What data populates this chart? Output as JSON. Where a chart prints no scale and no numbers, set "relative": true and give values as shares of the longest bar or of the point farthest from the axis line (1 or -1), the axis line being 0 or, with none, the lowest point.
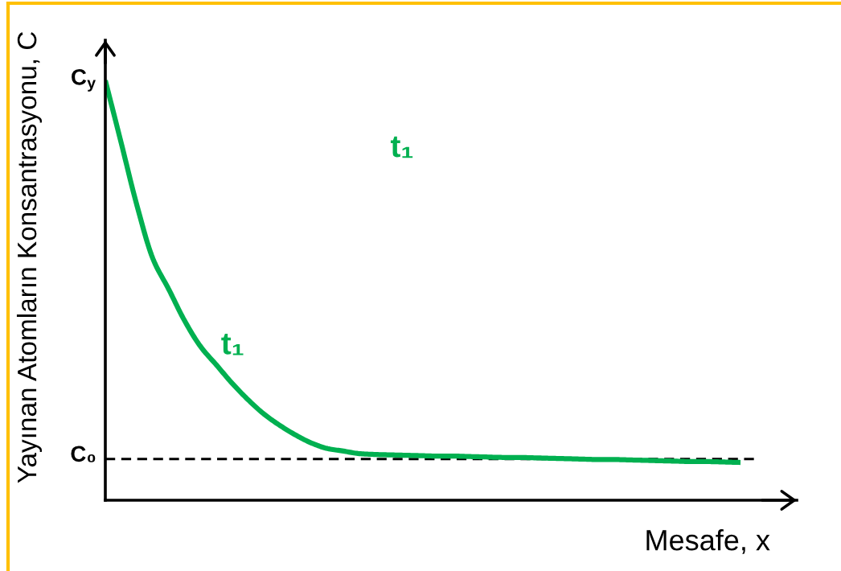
{
  "chart_data": {
    "type": "line",
    "ylabel": "Yayınan Atomların Konsantrasyonu, C",
    "xlabel": "Mesafe, x",
    "relative": true,
    "categories": [
      null,
      null,
      null,
      null,
      null,
      null,
      null,
      null,
      null,
      null,
      null,
      null,
      null,
      null,
      null,
      null,
      null,
      null,
      null,
      null,
      null,
      null,
      null,
      null,
      null,
      null,
      null,
      null,
      null,
      null,
      null,
      null,
      null,
      null,
      null,
      null,
      null,
      null,
      null,
      null,
      null
    ],
    "series": [
      {
        "name": "t₁",
        "color": "#00b050",
        "values": [
          1.0,
          0.851,
          0.701,
          0.575,
          0.502,
          0.427,
          0.366,
          0.322,
          0.278,
          0.239,
          0.205,
          0.178,
          0.155,
          0.136,
          0.123,
          0.117,
          0.111,
          0.109,
          0.108,
          0.107,
          0.106,
          0.105,
          0.105,
          0.104,
          0.103,
          0.102,
          0.102,
          0.101,
          0.1,
          0.099,
          0.098,
          0.097,
          0.097,
          0.096,
          0.095,
          0.094,
          0.093,
          0.092,
          0.092,
          0.091,
          0.09
        ]
      }
    ],
    "ref_lines": [
      {
        "axis": "y",
        "value": 0.098,
        "label": "C₀",
        "color": "#000000",
        "line_style": "dashed"
      }
    ],
    "annotations": [
      "C$_{y}$",
      "t₁"
    ]
  }
}
